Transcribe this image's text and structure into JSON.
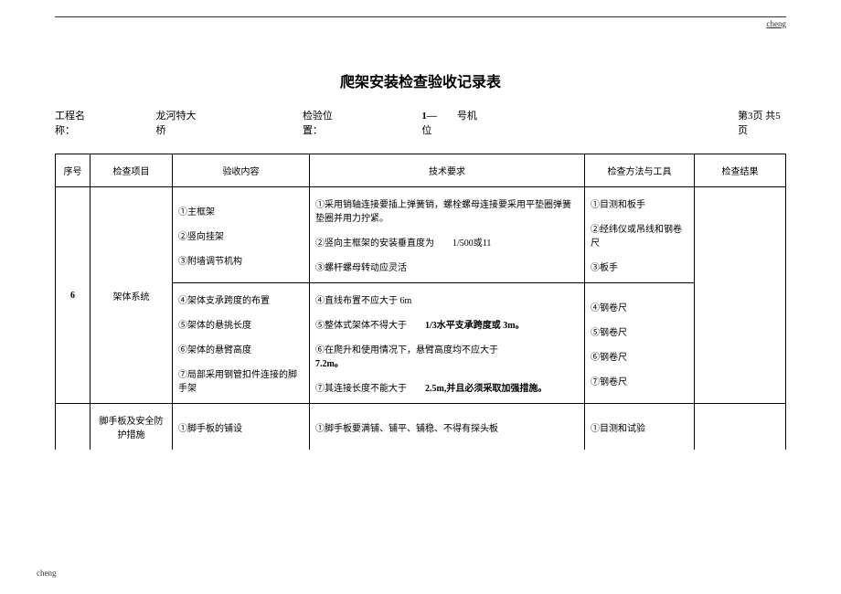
{
  "brand": "cheng",
  "title": "爬架安装检查验收记录表",
  "meta": {
    "proj_label": "工程名称：",
    "proj_value": "龙河特大桥",
    "pos_label": "检验位置：",
    "pos_value_prefix": "1—",
    "pos_value_suffix": "号机位",
    "page_info": "第3页 共5页"
  },
  "headers": {
    "seq": "序号",
    "item": "检查项目",
    "check": "验收内容",
    "tech": "技术要求",
    "method": "检查方法与工具",
    "result": "检查结果"
  },
  "row1": {
    "seq": "6",
    "item": "架体系统",
    "check_a": [
      "①主框架",
      "②竖向挂架",
      "③附墙调节机构"
    ],
    "tech_a": [
      "①采用销轴连接要插上弹簧销，螺栓螺母连接要采用平垫圈弹簧垫圈并用力拧紧。",
      "②竖向主框架的安装垂直度为　　1/500或11",
      "③螺杆螺母转动应灵活"
    ],
    "method_a": [
      "①目测和板手",
      "②经纬仪或吊线和钢卷尺",
      "③板手"
    ],
    "check_b": [
      "④架体支承跨度的布置",
      "⑤架体的悬挑长度",
      "⑥架体的悬臂高度",
      "⑦局部采用钢管扣件连接的脚手架"
    ],
    "tech_b": {
      "l4": "④直线布置不应大于 6m",
      "l5_pre": "⑤整体式架体不得大于　　",
      "l5_mid": "1/3水平支承跨度或 3m。",
      "l6_pre": "⑥在爬升和使用情况下，悬臂高度均不应大于",
      "l6_val": "7.2m。",
      "l7_pre": "⑦其连接长度不能大于　　",
      "l7_mid": "2.5m,并且必须采取加强措施。"
    },
    "method_b": [
      "④钢卷尺",
      "⑤钢卷尺",
      "⑥钢卷尺",
      "⑦钢卷尺"
    ]
  },
  "row2": {
    "item": "脚手板及安全防护措施",
    "check": "①脚手板的铺设",
    "tech": "①脚手板要满铺、铺平、铺稳、不得有探头板",
    "method": "①目测和试验"
  }
}
